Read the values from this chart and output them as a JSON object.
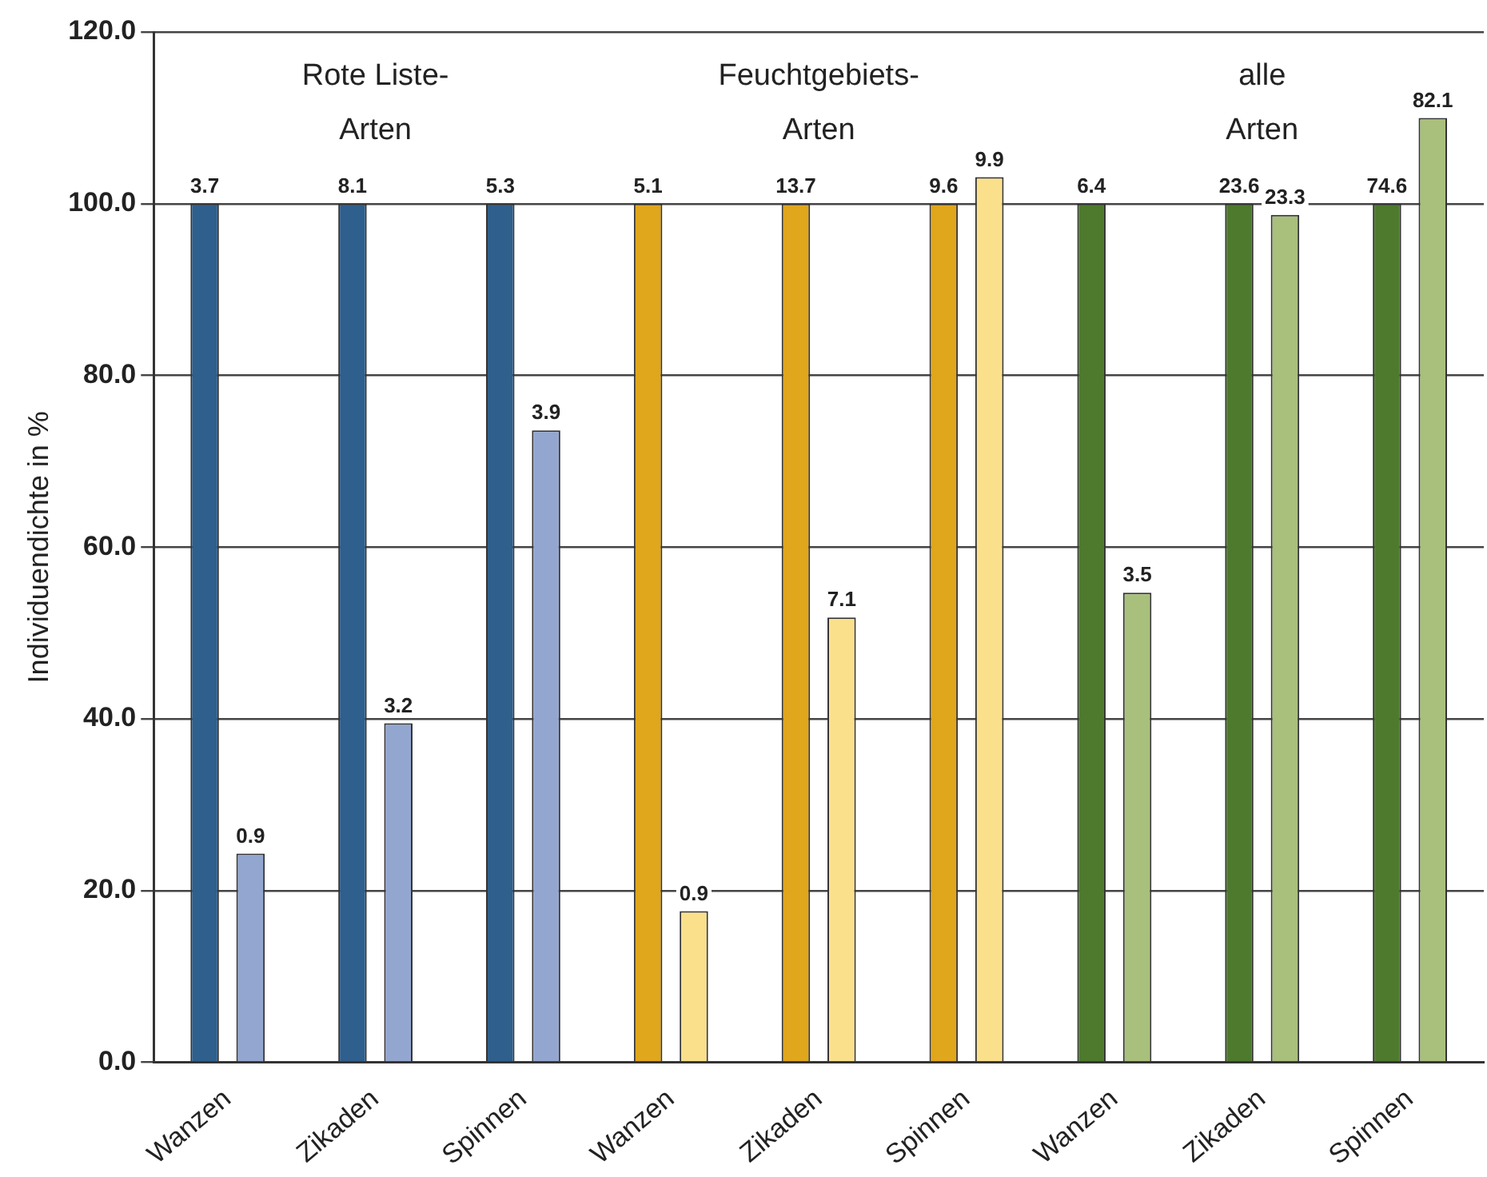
{
  "chart_data": {
    "type": "bar",
    "ylabel": "Individuendichte in %",
    "categories": [
      "Wanzen",
      "Zikaden",
      "Spinnen",
      "Wanzen",
      "Zikaden",
      "Spinnen",
      "Wanzen",
      "Zikaden",
      "Spinnen"
    ],
    "series": [
      {
        "colors": [
          "#2f5f8c",
          "#2f5f8c",
          "#2f5f8c",
          "#e0a61c",
          "#e0a61c",
          "#e0a61c",
          "#4d7a2c",
          "#4d7a2c",
          "#4d7a2c"
        ],
        "values": [
          100,
          100,
          100,
          100,
          100,
          100,
          100,
          100,
          100
        ]
      },
      {
        "colors": [
          "#93a6cf",
          "#93a6cf",
          "#93a6cf",
          "#fbe08c",
          "#fbe08c",
          "#fbe08c",
          "#a8c07c",
          "#a8c07c",
          "#a8c07c"
        ],
        "values": [
          24.3,
          39.5,
          73.6,
          17.6,
          51.8,
          103.1,
          54.7,
          98.7,
          110.0
        ]
      }
    ],
    "annotations": [
      "Rote Liste-\nArten",
      "Feuchtgebiets-\nArten",
      "alle\nArten",
      {
        "text": "3.7",
        "y": 100
      },
      {
        "text": "0.9",
        "y": 24.3
      },
      {
        "text": "8.1",
        "y": 100
      },
      {
        "text": "3.2",
        "y": 39.5
      },
      {
        "text": "5.3",
        "y": 100
      },
      {
        "text": "3.9",
        "y": 73.6
      },
      {
        "text": "5.1",
        "y": 100
      },
      {
        "text": "0.9",
        "y": 17.6
      },
      {
        "text": "13.7",
        "y": 100
      },
      {
        "text": "7.1",
        "y": 51.8
      },
      {
        "text": "9.6",
        "y": 100
      },
      {
        "text": "9.9",
        "y": 103.1
      },
      {
        "text": "6.4",
        "y": 100
      },
      {
        "text": "3.5",
        "y": 54.7
      },
      {
        "text": "23.6",
        "y": 100
      },
      {
        "text": "23.3",
        "y": 98.7
      },
      {
        "text": "74.6",
        "y": 100
      },
      {
        "text": "82.1",
        "y": 110.0
      }
    ],
    "ylim": [
      0,
      120
    ],
    "yticks": [
      {
        "value": 0,
        "label": "0.0"
      },
      {
        "value": 20,
        "label": "20.0"
      },
      {
        "value": 40,
        "label": "40.0"
      },
      {
        "value": 60,
        "label": "60.0"
      },
      {
        "value": 80,
        "label": "80.0"
      },
      {
        "value": 100,
        "label": "100.0"
      },
      {
        "value": 120,
        "label": "120.0"
      }
    ],
    "grid": "y",
    "legend": false
  }
}
